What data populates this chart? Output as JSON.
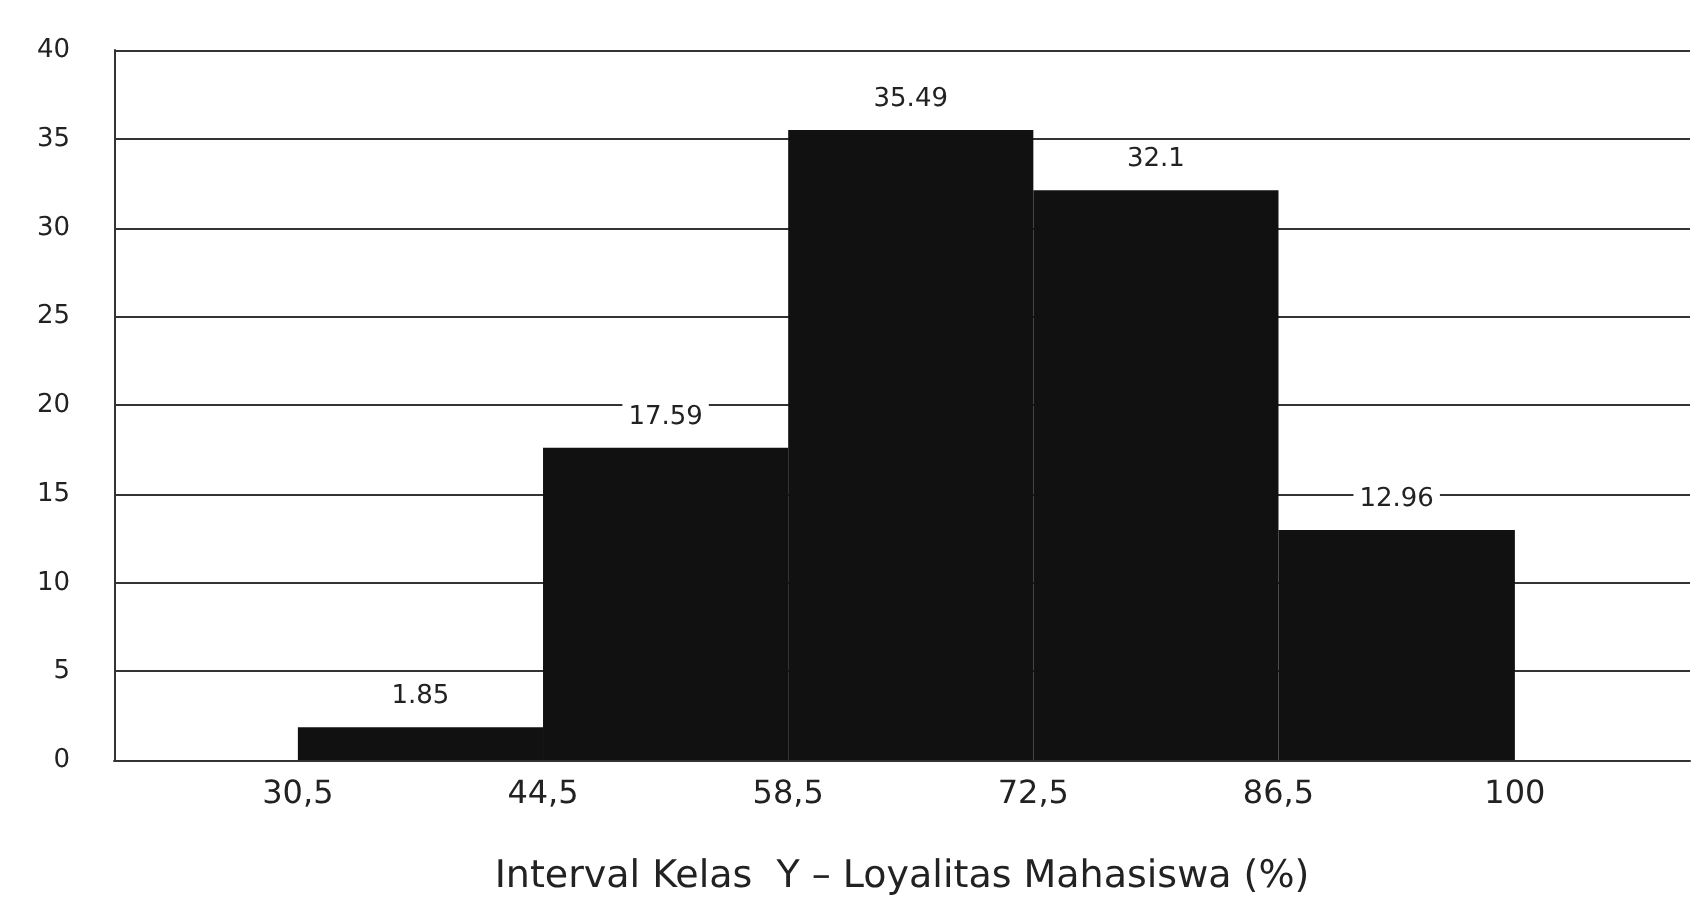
{
  "chart_data": {
    "type": "histogram",
    "xlabel": "Interval Kelas  Y – Loyalitas Mahasiswa (%)",
    "bins": [
      30.5,
      44.5,
      58.5,
      72.5,
      86.5,
      100
    ],
    "values": [
      1.85,
      17.59,
      35.49,
      32.1,
      12.96
    ],
    "color": "#111111",
    "data_labels": true,
    "xlim": [
      20,
      110
    ],
    "xticks": [
      {
        "value": 30.5,
        "label": "30,5"
      },
      {
        "value": 44.5,
        "label": "44,5"
      },
      {
        "value": 58.5,
        "label": "58,5"
      },
      {
        "value": 72.5,
        "label": "72,5"
      },
      {
        "value": 86.5,
        "label": "86,5"
      },
      {
        "value": 100,
        "label": "100"
      }
    ],
    "ylim": [
      0,
      40
    ],
    "yticks": [
      0,
      5,
      10,
      15,
      20,
      25,
      30,
      35,
      40
    ],
    "grid": "y"
  }
}
